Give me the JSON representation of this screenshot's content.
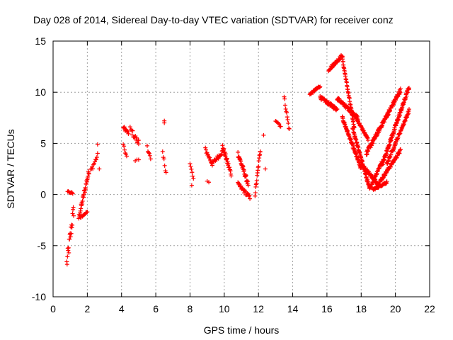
{
  "chart_data": {
    "type": "scatter",
    "title": "Day 028 of 2014, Sidereal Day-to-day VTEC variation (SDTVAR) for receiver conz",
    "xlabel": "GPS time / hours",
    "ylabel": "SDTVAR / TECUs",
    "xlim": [
      0,
      22
    ],
    "ylim": [
      -10,
      15
    ],
    "xticks": [
      0,
      2,
      4,
      6,
      8,
      10,
      12,
      14,
      16,
      18,
      20,
      22
    ],
    "yticks": [
      -10,
      -5,
      0,
      5,
      10,
      15
    ],
    "grid": true,
    "marker": "+",
    "color": "#ff0000",
    "series": [
      {
        "name": "sdtvar",
        "arcs": [
          {
            "t0": 0.8,
            "t1": 1.2,
            "v0": -6.8,
            "v1": -1.5,
            "step": 0.02,
            "jitter": 1.5
          },
          {
            "t0": 0.85,
            "t1": 1.15,
            "v0": 0.3,
            "v1": 0.1,
            "step": 0.04,
            "jitter": 0.15
          },
          {
            "t0": 1.5,
            "t1": 2.1,
            "v0": -2.3,
            "v1": 2.3,
            "step": 0.02,
            "jitter": 0.6
          },
          {
            "t0": 1.6,
            "t1": 2.0,
            "v0": -2.2,
            "v1": -1.7,
            "step": 0.04,
            "jitter": 0.2
          },
          {
            "t0": 2.2,
            "t1": 2.6,
            "v0": 2.3,
            "v1": 3.8,
            "step": 0.04,
            "jitter": 0.5
          },
          {
            "t0": 4.1,
            "t1": 4.4,
            "v0": 6.6,
            "v1": 6.0,
            "step": 0.03,
            "jitter": 0.3
          },
          {
            "t0": 4.1,
            "t1": 4.3,
            "v0": 4.8,
            "v1": 3.7,
            "step": 0.04,
            "jitter": 0.3
          },
          {
            "t0": 4.5,
            "t1": 5.0,
            "v0": 6.4,
            "v1": 5.0,
            "step": 0.04,
            "jitter": 0.6
          },
          {
            "t0": 5.5,
            "t1": 5.7,
            "v0": 4.8,
            "v1": 3.3,
            "step": 0.04,
            "jitter": 0.6
          },
          {
            "t0": 6.4,
            "t1": 6.6,
            "v0": 3.9,
            "v1": 2.3,
            "step": 0.04,
            "jitter": 0.6
          },
          {
            "t0": 8.0,
            "t1": 8.2,
            "v0": 3.0,
            "v1": 1.5,
            "step": 0.04,
            "jitter": 0.4
          },
          {
            "t0": 8.9,
            "t1": 9.3,
            "v0": 4.4,
            "v1": 3.0,
            "step": 0.03,
            "jitter": 0.4
          },
          {
            "t0": 9.3,
            "t1": 9.9,
            "v0": 3.0,
            "v1": 4.2,
            "step": 0.03,
            "jitter": 0.4
          },
          {
            "t0": 9.9,
            "t1": 10.4,
            "v0": 4.7,
            "v1": 2.0,
            "step": 0.02,
            "jitter": 0.5
          },
          {
            "t0": 10.8,
            "t1": 11.4,
            "v0": 4.0,
            "v1": 1.0,
            "step": 0.02,
            "jitter": 0.5
          },
          {
            "t0": 10.8,
            "t1": 11.5,
            "v0": 1.0,
            "v1": -0.3,
            "step": 0.03,
            "jitter": 0.4
          },
          {
            "t0": 11.8,
            "t1": 12.1,
            "v0": 0.0,
            "v1": 4.3,
            "step": 0.02,
            "jitter": 0.4
          },
          {
            "t0": 13.0,
            "t1": 13.3,
            "v0": 7.3,
            "v1": 6.7,
            "step": 0.05,
            "jitter": 0.3
          },
          {
            "t0": 13.5,
            "t1": 13.8,
            "v0": 9.5,
            "v1": 6.3,
            "step": 0.03,
            "jitter": 0.4
          },
          {
            "t0": 15.0,
            "t1": 15.6,
            "v0": 9.8,
            "v1": 10.6,
            "step": 0.02,
            "jitter": 0.2
          },
          {
            "t0": 15.6,
            "t1": 16.6,
            "v0": 9.5,
            "v1": 8.3,
            "step": 0.02,
            "jitter": 0.3
          },
          {
            "t0": 16.1,
            "t1": 16.9,
            "v0": 12.2,
            "v1": 13.6,
            "step": 0.02,
            "jitter": 0.3
          },
          {
            "t0": 16.9,
            "t1": 17.6,
            "v0": 13.3,
            "v1": 6.5,
            "step": 0.015,
            "jitter": 0.3
          },
          {
            "t0": 16.6,
            "t1": 17.8,
            "v0": 9.4,
            "v1": 7.5,
            "step": 0.02,
            "jitter": 0.3
          },
          {
            "t0": 17.6,
            "t1": 18.4,
            "v0": 7.8,
            "v1": 5.4,
            "step": 0.02,
            "jitter": 0.2
          },
          {
            "t0": 16.9,
            "t1": 18.0,
            "v0": 7.5,
            "v1": 2.5,
            "step": 0.015,
            "jitter": 0.3
          },
          {
            "t0": 17.5,
            "t1": 18.5,
            "v0": 6.5,
            "v1": 0.5,
            "step": 0.015,
            "jitter": 0.3
          },
          {
            "t0": 18.5,
            "t1": 19.2,
            "v0": 0.6,
            "v1": 3.2,
            "step": 0.02,
            "jitter": 0.3
          },
          {
            "t0": 18.0,
            "t1": 19.0,
            "v0": 3.0,
            "v1": 1.0,
            "step": 0.02,
            "jitter": 0.3
          },
          {
            "t0": 19.0,
            "t1": 20.3,
            "v0": 1.0,
            "v1": 4.3,
            "step": 0.02,
            "jitter": 0.3
          },
          {
            "t0": 18.7,
            "t1": 19.5,
            "v0": 0.5,
            "v1": 1.2,
            "step": 0.02,
            "jitter": 0.2
          },
          {
            "t0": 18.3,
            "t1": 20.3,
            "v0": 4.0,
            "v1": 10.2,
            "step": 0.015,
            "jitter": 0.4
          },
          {
            "t0": 19.2,
            "t1": 20.8,
            "v0": 2.8,
            "v1": 10.5,
            "step": 0.015,
            "jitter": 0.4
          },
          {
            "t0": 19.5,
            "t1": 20.8,
            "v0": 3.0,
            "v1": 8.2,
            "step": 0.02,
            "jitter": 0.3
          }
        ],
        "scattered": [
          [
            2.6,
            4.9
          ],
          [
            2.7,
            2.5
          ],
          [
            4.9,
            3.4
          ],
          [
            5.0,
            3.4
          ],
          [
            4.8,
            3.3
          ],
          [
            5.0,
            5.3
          ],
          [
            6.5,
            7.2
          ],
          [
            6.5,
            7.0
          ],
          [
            8.1,
            0.9
          ],
          [
            9.1,
            1.2
          ],
          [
            9.0,
            1.3
          ],
          [
            12.3,
            5.8
          ],
          [
            12.4,
            2.5
          ],
          [
            12.1,
            4.2
          ]
        ]
      }
    ]
  }
}
